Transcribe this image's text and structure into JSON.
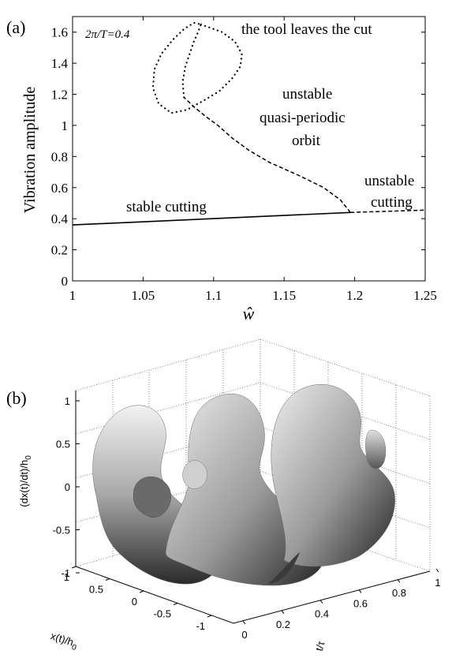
{
  "chart_data": [
    {
      "type": "line",
      "panel_label": "(a)",
      "xlabel": "ŵ",
      "ylabel": "Vibration amplitude",
      "xlim": [
        1,
        1.25
      ],
      "ylim": [
        0,
        1.7
      ],
      "xticks": [
        "1",
        "1.05",
        "1.1",
        "1.15",
        "1.2",
        "1.25"
      ],
      "yticks": [
        "0",
        "0.2",
        "0.4",
        "0.6",
        "0.8",
        "1",
        "1.2",
        "1.4",
        "1.6"
      ],
      "parameter_label": "2π/T=0.4",
      "annotations": {
        "tool_leaves": "the tool leaves the cut",
        "qp_line1": "unstable",
        "qp_line2": "quasi-periodic",
        "qp_line3": "orbit",
        "stable": "stable cutting",
        "unstable_line1": "unstable",
        "unstable_line2": "cutting"
      },
      "series": [
        {
          "style": "solid",
          "x": [
            1.0,
            1.197
          ],
          "y": [
            0.36,
            0.44
          ]
        },
        {
          "style": "dashed",
          "x": [
            1.197,
            1.25
          ],
          "y": [
            0.44,
            0.455
          ]
        },
        {
          "style": "dashed",
          "x": [
            1.197,
            1.19,
            1.178,
            1.16,
            1.14,
            1.125,
            1.113,
            1.103,
            1.094,
            1.086,
            1.079
          ],
          "y": [
            0.44,
            0.52,
            0.6,
            0.68,
            0.76,
            0.84,
            0.92,
            1.0,
            1.06,
            1.12,
            1.18
          ]
        },
        {
          "style": "dotted",
          "x": [
            1.079,
            1.078,
            1.08,
            1.083,
            1.086,
            1.089,
            1.091
          ],
          "y": [
            1.18,
            1.28,
            1.38,
            1.46,
            1.54,
            1.6,
            1.65
          ]
        },
        {
          "style": "dotted",
          "x": [
            1.091,
            1.106,
            1.115,
            1.12,
            1.119,
            1.113,
            1.104,
            1.093,
            1.081,
            1.07,
            1.061,
            1.057,
            1.058,
            1.063,
            1.071,
            1.079,
            1.086,
            1.091
          ],
          "y": [
            1.65,
            1.6,
            1.54,
            1.46,
            1.38,
            1.3,
            1.22,
            1.16,
            1.1,
            1.08,
            1.14,
            1.24,
            1.36,
            1.46,
            1.55,
            1.62,
            1.66,
            1.65
          ]
        }
      ]
    },
    {
      "type": "surface3d",
      "panel_label": "(b)",
      "zlabel": "(dx(t)/dt)/h",
      "zlabel_sub": "0",
      "xlabel": "x(t)/h",
      "xlabel_sub": "0",
      "ylabel": "t/τ",
      "zticks": [
        "1",
        "0.5",
        "0",
        "-0.5",
        "-1"
      ],
      "xticks": [
        "1",
        "0.5",
        "0",
        "-0.5",
        "-1"
      ],
      "yticks": [
        "0",
        "0.2",
        "0.4",
        "0.6",
        "0.8",
        "1"
      ]
    }
  ]
}
